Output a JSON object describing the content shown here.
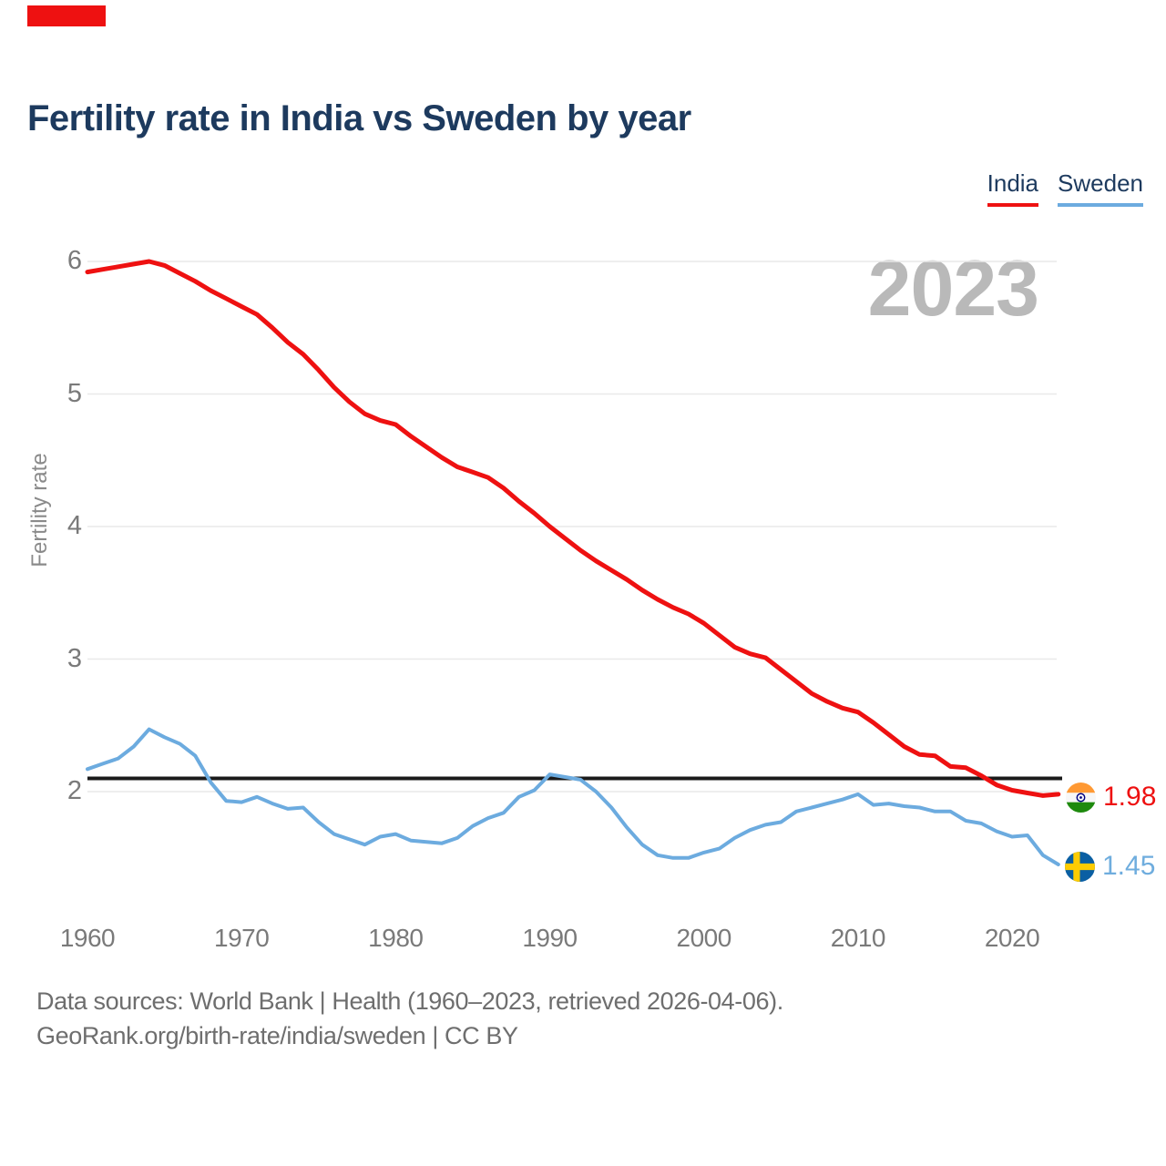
{
  "page": {
    "title": "Fertility rate in India vs Sweden by year",
    "watermark": "2023"
  },
  "decorations": {
    "top_left_bar_color": "#ee1111"
  },
  "legend": [
    {
      "label": "India",
      "color": "#ee1111"
    },
    {
      "label": "Sweden",
      "color": "#6cabdf"
    }
  ],
  "axis": {
    "y_label": "Fertility rate",
    "y_ticks": [
      6,
      5,
      4,
      3,
      2
    ],
    "x_ticks": [
      1960,
      1970,
      1980,
      1990,
      2000,
      2010,
      2020
    ]
  },
  "reference_line": {
    "value": 2.1,
    "color": "#1a1a1a"
  },
  "end_labels": {
    "india": {
      "value": "1.98",
      "color": "#ee1111"
    },
    "sweden": {
      "value": "1.45",
      "color": "#6fadde"
    }
  },
  "footer": {
    "line1": "Data sources: World Bank | Health (1960–2023, retrieved 2026-04-06).",
    "line2": "GeoRank.org/birth-rate/india/sweden | CC BY"
  },
  "chart_data": {
    "type": "line",
    "title": "Fertility rate in India vs Sweden by year",
    "ylabel": "Fertility rate",
    "xlabel": "",
    "ylim": [
      1.0,
      6.2
    ],
    "grid": "horizontal",
    "legend_position": "top-right",
    "x": {
      "start": 1960,
      "end": 2023,
      "step": 1
    },
    "reference_value": 2.1,
    "series": [
      {
        "name": "India",
        "color": "#ee1111",
        "end_label": "1.98",
        "values": [
          5.92,
          5.94,
          5.96,
          5.98,
          6.0,
          5.97,
          5.91,
          5.85,
          5.78,
          5.72,
          5.66,
          5.6,
          5.5,
          5.39,
          5.3,
          5.18,
          5.05,
          4.94,
          4.85,
          4.8,
          4.77,
          4.68,
          4.6,
          4.52,
          4.45,
          4.41,
          4.37,
          4.29,
          4.19,
          4.1,
          4.0,
          3.91,
          3.82,
          3.74,
          3.67,
          3.6,
          3.52,
          3.45,
          3.39,
          3.34,
          3.27,
          3.18,
          3.09,
          3.04,
          3.01,
          2.92,
          2.83,
          2.74,
          2.68,
          2.63,
          2.6,
          2.52,
          2.43,
          2.34,
          2.28,
          2.27,
          2.19,
          2.18,
          2.12,
          2.05,
          2.01,
          1.99,
          1.97,
          1.98
        ]
      },
      {
        "name": "Sweden",
        "color": "#6cabdf",
        "end_label": "1.45",
        "values": [
          2.17,
          2.21,
          2.25,
          2.34,
          2.47,
          2.41,
          2.36,
          2.27,
          2.07,
          1.93,
          1.92,
          1.96,
          1.91,
          1.87,
          1.88,
          1.77,
          1.68,
          1.64,
          1.6,
          1.66,
          1.68,
          1.63,
          1.62,
          1.61,
          1.65,
          1.74,
          1.8,
          1.84,
          1.96,
          2.01,
          2.13,
          2.11,
          2.09,
          2.0,
          1.88,
          1.73,
          1.6,
          1.52,
          1.5,
          1.5,
          1.54,
          1.57,
          1.65,
          1.71,
          1.75,
          1.77,
          1.85,
          1.88,
          1.91,
          1.94,
          1.98,
          1.9,
          1.91,
          1.89,
          1.88,
          1.85,
          1.85,
          1.78,
          1.76,
          1.7,
          1.66,
          1.67,
          1.52,
          1.45
        ]
      }
    ]
  }
}
